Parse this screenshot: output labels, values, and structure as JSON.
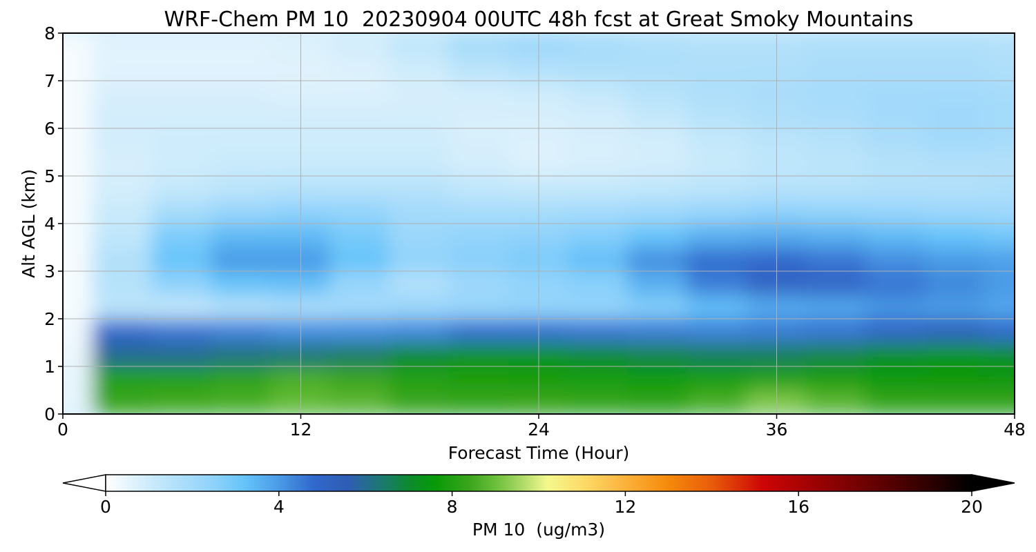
{
  "chart_data": {
    "type": "heatmap",
    "title": "WRF-Chem PM 10  20230904 00UTC 48h fcst at Great Smoky Mountains",
    "xlabel": "Forecast Time (Hour)",
    "ylabel": "Alt AGL (km)",
    "xlim": [
      0,
      48
    ],
    "ylim": [
      0,
      8
    ],
    "x_ticks": [
      0,
      12,
      24,
      36,
      48
    ],
    "y_ticks": [
      0,
      1,
      2,
      3,
      4,
      5,
      6,
      7,
      8
    ],
    "grid": true,
    "x": [
      0,
      3,
      6,
      9,
      12,
      15,
      18,
      21,
      24,
      27,
      30,
      33,
      36,
      39,
      42,
      45,
      48
    ],
    "y": [
      0.25,
      0.75,
      1.25,
      1.75,
      2.25,
      2.75,
      3.25,
      3.75,
      4.25,
      4.75,
      5.25,
      5.75,
      6.25,
      6.75,
      7.25,
      7.75
    ],
    "values": [
      [
        0.5,
        8.4,
        8.5,
        8.6,
        8.9,
        8.8,
        8.4,
        8.3,
        8.4,
        8.3,
        8.2,
        8.6,
        9.2,
        8.8,
        8.3,
        8.3,
        8.3
      ],
      [
        0.5,
        8.0,
        8.0,
        8.2,
        8.6,
        8.4,
        8.0,
        7.9,
        7.8,
        7.8,
        7.7,
        7.8,
        8.0,
        7.9,
        7.6,
        7.5,
        7.5
      ],
      [
        0.4,
        6.0,
        6.0,
        6.2,
        6.3,
        6.5,
        7.0,
        7.3,
        7.3,
        7.0,
        6.8,
        6.6,
        6.6,
        6.8,
        7.2,
        7.4,
        7.2
      ],
      [
        0.3,
        4.8,
        4.6,
        4.4,
        4.2,
        4.2,
        4.3,
        4.7,
        4.7,
        4.6,
        4.5,
        4.4,
        4.5,
        4.6,
        5.0,
        5.3,
        4.8
      ],
      [
        0.2,
        1.4,
        1.3,
        1.6,
        1.8,
        2.0,
        2.2,
        2.3,
        2.4,
        2.4,
        2.7,
        3.3,
        3.7,
        3.8,
        4.1,
        4.0,
        3.8
      ],
      [
        0.2,
        1.5,
        2.5,
        3.2,
        3.3,
        2.3,
        1.6,
        2.1,
        2.4,
        2.6,
        3.6,
        4.5,
        5.1,
        5.0,
        4.6,
        4.3,
        4.0
      ],
      [
        0.2,
        1.6,
        3.2,
        4.0,
        4.0,
        3.2,
        2.4,
        2.6,
        2.8,
        3.3,
        4.2,
        4.7,
        4.8,
        4.6,
        4.2,
        4.0,
        3.9
      ],
      [
        0.2,
        1.3,
        2.8,
        3.4,
        3.4,
        2.9,
        2.2,
        2.4,
        2.5,
        2.7,
        3.2,
        3.6,
        3.7,
        3.6,
        3.4,
        3.2,
        3.0
      ],
      [
        0.2,
        1.1,
        1.9,
        2.3,
        2.5,
        2.4,
        2.0,
        1.9,
        1.9,
        2.0,
        2.1,
        2.3,
        2.5,
        2.4,
        2.3,
        2.2,
        2.1
      ],
      [
        0.2,
        0.9,
        1.2,
        1.4,
        1.5,
        1.5,
        1.5,
        1.3,
        1.2,
        1.2,
        1.3,
        1.4,
        1.5,
        1.5,
        1.6,
        1.6,
        1.7
      ],
      [
        0.2,
        0.8,
        1.0,
        1.1,
        1.1,
        1.1,
        1.1,
        0.9,
        0.7,
        0.8,
        0.9,
        1.1,
        1.3,
        1.4,
        1.5,
        1.6,
        1.6
      ],
      [
        0.2,
        0.9,
        1.0,
        1.0,
        1.0,
        1.0,
        1.0,
        0.8,
        0.7,
        0.8,
        0.9,
        1.2,
        1.4,
        1.5,
        1.8,
        2.0,
        1.9
      ],
      [
        0.2,
        0.9,
        0.9,
        0.9,
        0.9,
        0.9,
        0.9,
        0.8,
        0.8,
        0.9,
        1.2,
        1.5,
        1.7,
        1.8,
        2.0,
        2.1,
        2.0
      ],
      [
        0.2,
        0.8,
        0.8,
        0.8,
        0.7,
        0.7,
        0.8,
        0.9,
        1.0,
        1.2,
        1.5,
        1.7,
        1.8,
        1.9,
        2.0,
        2.0,
        1.9
      ],
      [
        0.2,
        0.6,
        0.6,
        0.6,
        0.6,
        0.7,
        1.0,
        1.4,
        1.6,
        1.7,
        1.7,
        1.7,
        1.7,
        1.8,
        1.8,
        1.8,
        1.7
      ],
      [
        0.2,
        0.6,
        0.6,
        0.6,
        0.7,
        0.9,
        1.3,
        1.9,
        2.1,
        1.9,
        1.7,
        1.6,
        1.6,
        1.7,
        1.7,
        1.7,
        1.6
      ]
    ],
    "colorbar": {
      "label": "PM 10  (ug/m3)",
      "min": 0,
      "max": 20,
      "ticks": [
        0,
        4,
        8,
        12,
        16,
        20
      ],
      "extend": "both",
      "orientation": "horizontal",
      "placement": "bottom"
    },
    "colormap": [
      [
        0,
        "#ffffff"
      ],
      [
        0.5,
        "#e6f5fd"
      ],
      [
        1.5,
        "#b6e2fa"
      ],
      [
        2.5,
        "#8fd2fb"
      ],
      [
        3.2,
        "#66c4fa"
      ],
      [
        4.0,
        "#4a9be6"
      ],
      [
        4.8,
        "#3068cc"
      ],
      [
        5.6,
        "#2f5cb4"
      ],
      [
        6.4,
        "#1c7a6c"
      ],
      [
        7.0,
        "#0d8a2e"
      ],
      [
        7.6,
        "#079a08"
      ],
      [
        8.4,
        "#3aa51c"
      ],
      [
        9.0,
        "#6bbf3a"
      ],
      [
        9.5,
        "#a0d460"
      ],
      [
        10.2,
        "#f4f98e"
      ],
      [
        11.0,
        "#fddc6a"
      ],
      [
        12.0,
        "#fcb23c"
      ],
      [
        13.0,
        "#f5890a"
      ],
      [
        14.0,
        "#e85c0a"
      ],
      [
        15.2,
        "#cc0404"
      ],
      [
        16.8,
        "#8c0202"
      ],
      [
        18.4,
        "#4a0000"
      ],
      [
        20,
        "#000000"
      ]
    ]
  }
}
